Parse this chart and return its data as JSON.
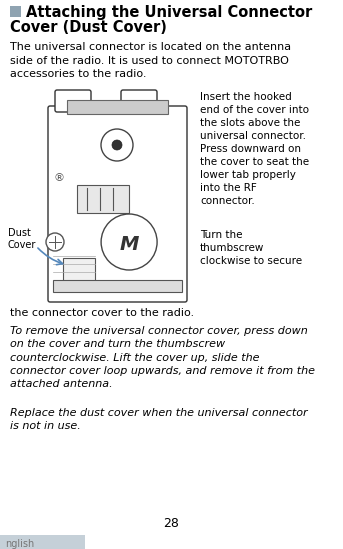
{
  "title_line1": "Attaching the Universal Connector",
  "title_line2": "Cover (Dust Cover)",
  "title_icon_color": "#8fa3b1",
  "title_fontsize": 10.5,
  "body_fontsize": 8.0,
  "italic_fontsize": 8.0,
  "page_number": "28",
  "tab_label": "nglish",
  "tab_color": "#c5d0d8",
  "background_color": "#ffffff",
  "para1": "The universal connector is located on the antenna\nside of the radio. It is used to connect MOTOTRBO\naccessories to the radio.",
  "right_text1": "Insert the hooked\nend of the cover into\nthe slots above the\nuniversal connector.\nPress downward on\nthe cover to seat the\nlower tab properly\ninto the RF\nconnector.",
  "right_text2": "Turn the\nthumbscrew\nclockwise to secure",
  "bottom_text1": "the connector cover to the radio.",
  "para2": "To remove the universal connector cover, press down\non the cover and turn the thumbscrew\ncounterclockwise. Lift the cover up, slide the\nconnector cover loop upwards, and remove it from the\nattached antenna.",
  "para3": "Replace the dust cover when the universal connector\nis not in use.",
  "dust_cover_label": "Dust\nCover",
  "arrow_color": "#5588bb"
}
